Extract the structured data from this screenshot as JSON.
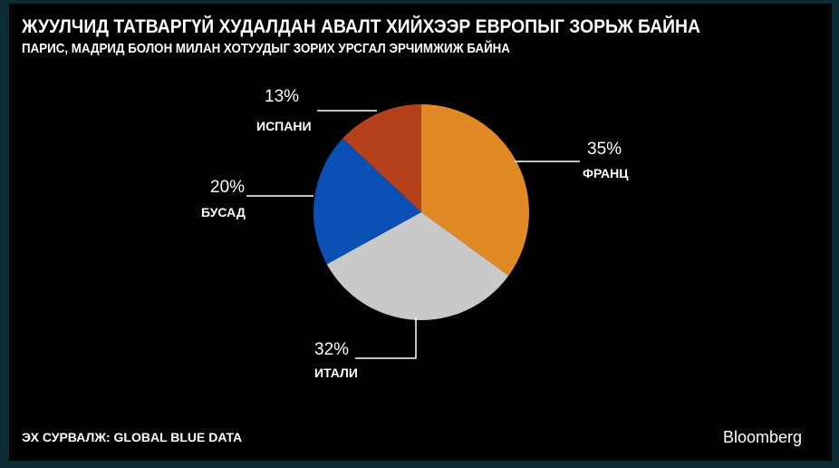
{
  "title": "ЖУУЛЧИД ТАТВАРГҮЙ ХУДАЛДАН АВАЛТ ХИЙХЭЭР ЕВРОПЫГ ЗОРЬЖ БАЙНА",
  "subtitle": "ПАРИС, МАДРИД БОЛОН МИЛАН ХОТУУДЫГ ЗОРИХ УРСГАЛ ЭРЧИМЖИЖ БАЙНА",
  "source": "ЭХ СУРВАЛЖ: GLOBAL BLUE DATA",
  "logo": "Bloomberg",
  "chart_data": {
    "type": "pie",
    "categories": [
      "ФРАНЦ",
      "ИТАЛИ",
      "БУСАД",
      "ИСПАНИ"
    ],
    "values": [
      35,
      32,
      20,
      13
    ],
    "labels": [
      "35%",
      "32%",
      "20%",
      "13%"
    ],
    "colors": [
      "#e08a25",
      "#c9c9c9",
      "#0a4fb3",
      "#b5401c"
    ]
  }
}
